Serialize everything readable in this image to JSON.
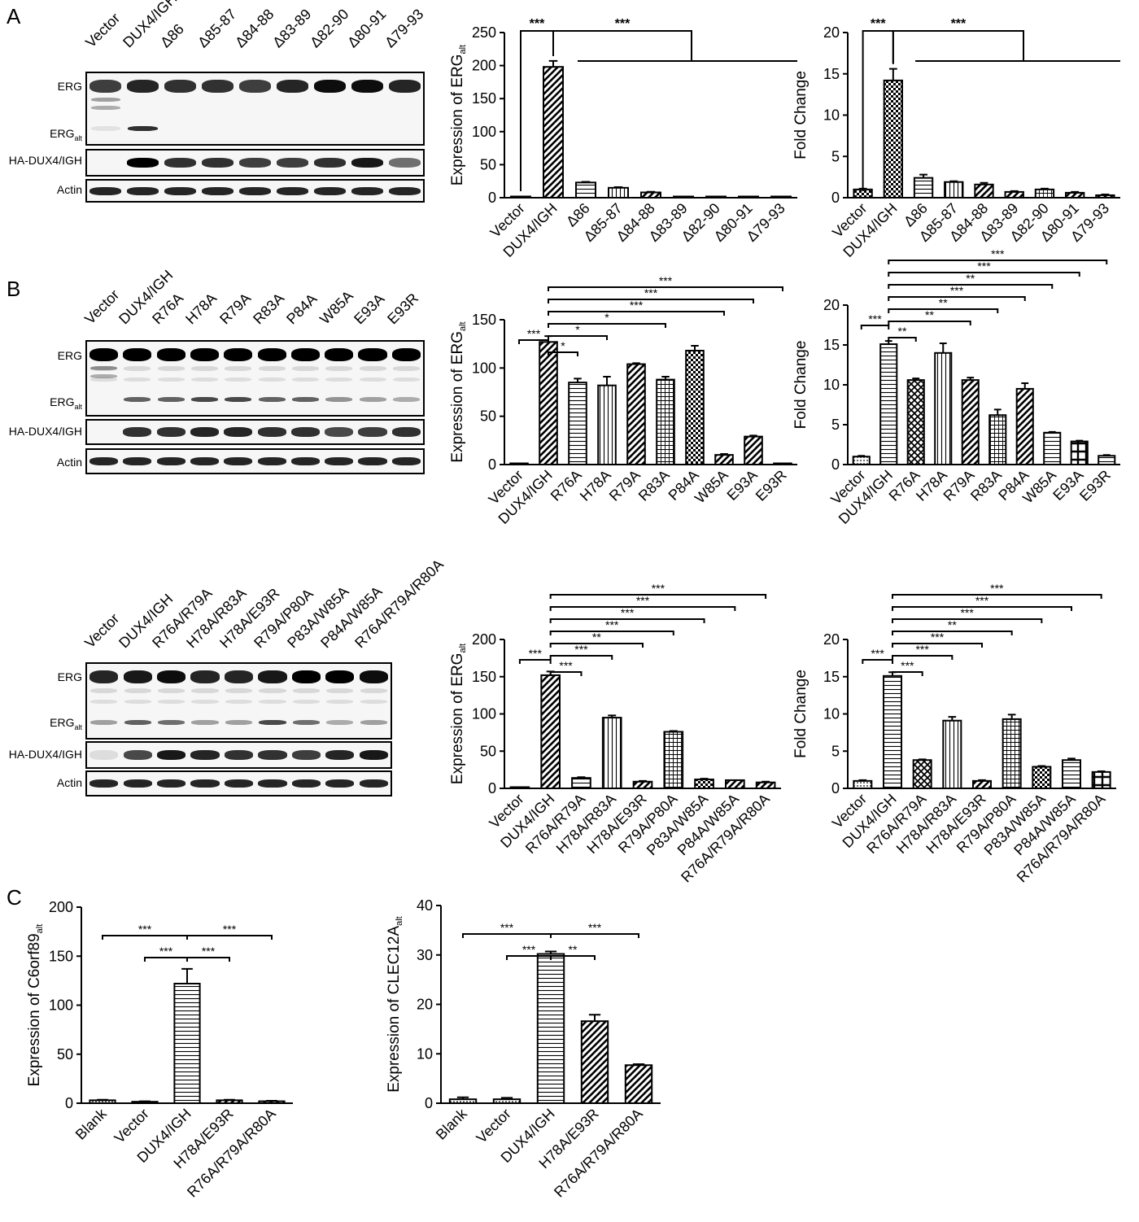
{
  "panel_letters": [
    "A",
    "B",
    "C"
  ],
  "blots": [
    {
      "lanes": [
        "Vector",
        "DUX4/IGH",
        "Δ86",
        "Δ85-87",
        "Δ84-88",
        "Δ83-89",
        "Δ82-90",
        "Δ80-91",
        "Δ79-93"
      ],
      "rows": [
        {
          "label": "ERG",
          "sub": ""
        },
        {
          "label": "ERG",
          "sub": "alt"
        },
        {
          "label": "HA-DUX4/IGH",
          "sub": ""
        },
        {
          "label": "Actin",
          "sub": ""
        }
      ]
    },
    {
      "lanes": [
        "Vector",
        "DUX4/IGH",
        "R76A",
        "H78A",
        "R79A",
        "R83A",
        "P84A",
        "W85A",
        "E93A",
        "E93R"
      ],
      "rows": [
        {
          "label": "ERG",
          "sub": ""
        },
        {
          "label": "ERG",
          "sub": "alt"
        },
        {
          "label": "HA-DUX4/IGH",
          "sub": ""
        },
        {
          "label": "Actin",
          "sub": ""
        }
      ]
    },
    {
      "lanes": [
        "Vector",
        "DUX4/IGH",
        "R76A/R79A",
        "H78A/R83A",
        "H78A/E93R",
        "R79A/P80A",
        "P83A/W85A",
        "P84A/W85A",
        "R76A/R79A/R80A"
      ],
      "rows": [
        {
          "label": "ERG",
          "sub": ""
        },
        {
          "label": "ERG",
          "sub": "alt"
        },
        {
          "label": "HA-DUX4/IGH",
          "sub": ""
        },
        {
          "label": "Actin",
          "sub": ""
        }
      ]
    }
  ],
  "chart_data": [
    {
      "type": "bar",
      "panel": "A",
      "ylabel": "Expression of ERG",
      "ylabel_sub": "alt",
      "ylim": [
        0,
        250
      ],
      "yticks": [
        "0",
        "50",
        "100",
        "150",
        "200",
        "250"
      ],
      "categories": [
        "Vector",
        "DUX4/IGH",
        "Δ86",
        "Δ85-87",
        "Δ84-88",
        "Δ83-89",
        "Δ82-90",
        "Δ80-91",
        "Δ79-93"
      ],
      "values": [
        0.5,
        198,
        23,
        15,
        8,
        1,
        1,
        1.5,
        1
      ],
      "errors": [
        0,
        9,
        1,
        1,
        1,
        0,
        0,
        0,
        0
      ],
      "significance": [
        {
          "from": 0,
          "to": 1,
          "label": "***"
        },
        {
          "from": 1,
          "to": 8,
          "label": "***",
          "style": "group"
        }
      ]
    },
    {
      "type": "bar",
      "panel": "A",
      "ylabel": "Fold Change",
      "ylabel_sub": "",
      "ylim": [
        0,
        20
      ],
      "yticks": [
        "0",
        "5",
        "10",
        "15",
        "20"
      ],
      "categories": [
        "Vector",
        "DUX4/IGH",
        "Δ86",
        "Δ85-87",
        "Δ84-88",
        "Δ83-89",
        "Δ82-90",
        "Δ80-91",
        "Δ79-93"
      ],
      "values": [
        1,
        14.2,
        2.4,
        1.9,
        1.6,
        0.7,
        1.0,
        0.6,
        0.3
      ],
      "errors": [
        0.1,
        1.4,
        0.4,
        0.1,
        0.2,
        0.1,
        0.1,
        0.1,
        0.1
      ],
      "significance": [
        {
          "from": 0,
          "to": 1,
          "label": "***"
        },
        {
          "from": 1,
          "to": 8,
          "label": "***",
          "style": "group"
        }
      ]
    },
    {
      "type": "bar",
      "panel": "B",
      "ylabel": "Expression of ERG",
      "ylabel_sub": "alt",
      "ylim": [
        0,
        150
      ],
      "yticks": [
        "0",
        "50",
        "100",
        "150"
      ],
      "categories": [
        "Vector",
        "DUX4/IGH",
        "R76A",
        "H78A",
        "R79A",
        "R83A",
        "P84A",
        "W85A",
        "E93A",
        "E93R"
      ],
      "values": [
        0.5,
        127,
        85,
        82,
        104,
        88,
        118,
        10,
        29,
        1
      ],
      "errors": [
        0,
        6,
        4,
        9,
        1,
        3,
        5,
        1,
        1,
        0
      ],
      "significance": [
        {
          "from": 0,
          "to": 1,
          "label": "***"
        },
        {
          "from": 1,
          "to": 2,
          "label": "*"
        },
        {
          "from": 1,
          "to": 3,
          "label": "*"
        },
        {
          "from": 1,
          "to": 5,
          "label": "*"
        },
        {
          "from": 1,
          "to": 7,
          "label": "***"
        },
        {
          "from": 1,
          "to": 8,
          "label": "***"
        },
        {
          "from": 1,
          "to": 9,
          "label": "***"
        }
      ]
    },
    {
      "type": "bar",
      "panel": "B",
      "ylabel": "Fold Change",
      "ylabel_sub": "",
      "ylim": [
        0,
        20
      ],
      "yticks": [
        "0",
        "5",
        "10",
        "15",
        "20"
      ],
      "categories": [
        "Vector",
        "DUX4/IGH",
        "R76A",
        "H78A",
        "R79A",
        "R83A",
        "P84A",
        "W85A",
        "E93A",
        "E93R"
      ],
      "values": [
        1,
        15.1,
        10.6,
        14.0,
        10.6,
        6.2,
        9.5,
        4.0,
        2.9,
        1.1
      ],
      "errors": [
        0.1,
        0.4,
        0.2,
        1.2,
        0.3,
        0.7,
        0.7,
        0.1,
        0.1,
        0.1
      ],
      "significance": [
        {
          "from": 0,
          "to": 1,
          "label": "***"
        },
        {
          "from": 1,
          "to": 2,
          "label": "**"
        },
        {
          "from": 1,
          "to": 4,
          "label": "**"
        },
        {
          "from": 1,
          "to": 5,
          "label": "**"
        },
        {
          "from": 1,
          "to": 6,
          "label": "***"
        },
        {
          "from": 1,
          "to": 7,
          "label": "**"
        },
        {
          "from": 1,
          "to": 8,
          "label": "***"
        },
        {
          "from": 1,
          "to": 9,
          "label": "***"
        }
      ]
    },
    {
      "type": "bar",
      "panel": "B",
      "ylabel": "Expression of ERG",
      "ylabel_sub": "alt",
      "ylim": [
        0,
        200
      ],
      "yticks": [
        "0",
        "50",
        "100",
        "150",
        "200"
      ],
      "categories": [
        "Vector",
        "DUX4/IGH",
        "R76A/R79A",
        "H78A/R83A",
        "H78A/E93R",
        "R79A/P80A",
        "P83A/W85A",
        "P84A/W85A",
        "R76A/R79A/R80A"
      ],
      "values": [
        0.5,
        152,
        14,
        95,
        9,
        76,
        12,
        11,
        8
      ],
      "errors": [
        0,
        5,
        1,
        3,
        1,
        1,
        1,
        0,
        1
      ],
      "significance": [
        {
          "from": 0,
          "to": 1,
          "label": "***"
        },
        {
          "from": 1,
          "to": 2,
          "label": "***"
        },
        {
          "from": 1,
          "to": 3,
          "label": "***"
        },
        {
          "from": 1,
          "to": 4,
          "label": "**"
        },
        {
          "from": 1,
          "to": 5,
          "label": "***"
        },
        {
          "from": 1,
          "to": 6,
          "label": "***"
        },
        {
          "from": 1,
          "to": 7,
          "label": "***"
        },
        {
          "from": 1,
          "to": 8,
          "label": "***"
        }
      ]
    },
    {
      "type": "bar",
      "panel": "B",
      "ylabel": "Fold Change",
      "ylabel_sub": "",
      "ylim": [
        0,
        20
      ],
      "yticks": [
        "0",
        "5",
        "10",
        "15",
        "20"
      ],
      "categories": [
        "Vector",
        "DUX4/IGH",
        "R76A/R79A",
        "H78A/R83A",
        "H78A/E93R",
        "R79A/P80A",
        "P83A/W85A",
        "P84A/W85A",
        "R76A/R79A/R80A"
      ],
      "values": [
        1,
        15.1,
        3.8,
        9.1,
        1.0,
        9.3,
        2.9,
        3.8,
        2.2
      ],
      "errors": [
        0.1,
        0.5,
        0.1,
        0.5,
        0.1,
        0.6,
        0.1,
        0.2,
        0.1
      ],
      "significance": [
        {
          "from": 0,
          "to": 1,
          "label": "***"
        },
        {
          "from": 1,
          "to": 2,
          "label": "***"
        },
        {
          "from": 1,
          "to": 3,
          "label": "***"
        },
        {
          "from": 1,
          "to": 4,
          "label": "***"
        },
        {
          "from": 1,
          "to": 5,
          "label": "**"
        },
        {
          "from": 1,
          "to": 6,
          "label": "***"
        },
        {
          "from": 1,
          "to": 7,
          "label": "***"
        },
        {
          "from": 1,
          "to": 8,
          "label": "***"
        }
      ]
    },
    {
      "type": "bar",
      "panel": "C",
      "ylabel": "Expression of C6orf89",
      "ylabel_sub": "alt",
      "ylim": [
        0,
        200
      ],
      "yticks": [
        "0",
        "50",
        "100",
        "150",
        "200"
      ],
      "categories": [
        "Blank",
        "Vector",
        "DUX4/IGH",
        "H78A/E93R",
        "R76A/R79A/R80A"
      ],
      "values": [
        3,
        1.5,
        122,
        3,
        2
      ],
      "errors": [
        0.5,
        0.5,
        15,
        0.5,
        0.5
      ],
      "significance": [
        {
          "from": 1,
          "to": 2,
          "label": "***"
        },
        {
          "from": 2,
          "to": 3,
          "label": "***"
        },
        {
          "from": 0,
          "to": 2,
          "label": "***"
        },
        {
          "from": 2,
          "to": 4,
          "label": "***"
        }
      ]
    },
    {
      "type": "bar",
      "panel": "C",
      "ylabel": "Expression of CLEC12A",
      "ylabel_sub": "alt",
      "ylim": [
        0,
        40
      ],
      "yticks": [
        "0",
        "10",
        "20",
        "30",
        "40"
      ],
      "categories": [
        "Blank",
        "Vector",
        "DUX4/IGH",
        "H78A/E93R",
        "R76A/R79A/R80A"
      ],
      "values": [
        0.8,
        0.8,
        30.2,
        16.6,
        7.7
      ],
      "errors": [
        0.4,
        0.3,
        0.5,
        1.3,
        0.2
      ],
      "significance": [
        {
          "from": 1,
          "to": 2,
          "label": "***"
        },
        {
          "from": 2,
          "to": 3,
          "label": "**"
        },
        {
          "from": 0,
          "to": 2,
          "label": "***"
        },
        {
          "from": 2,
          "to": 4,
          "label": "***"
        }
      ]
    }
  ]
}
